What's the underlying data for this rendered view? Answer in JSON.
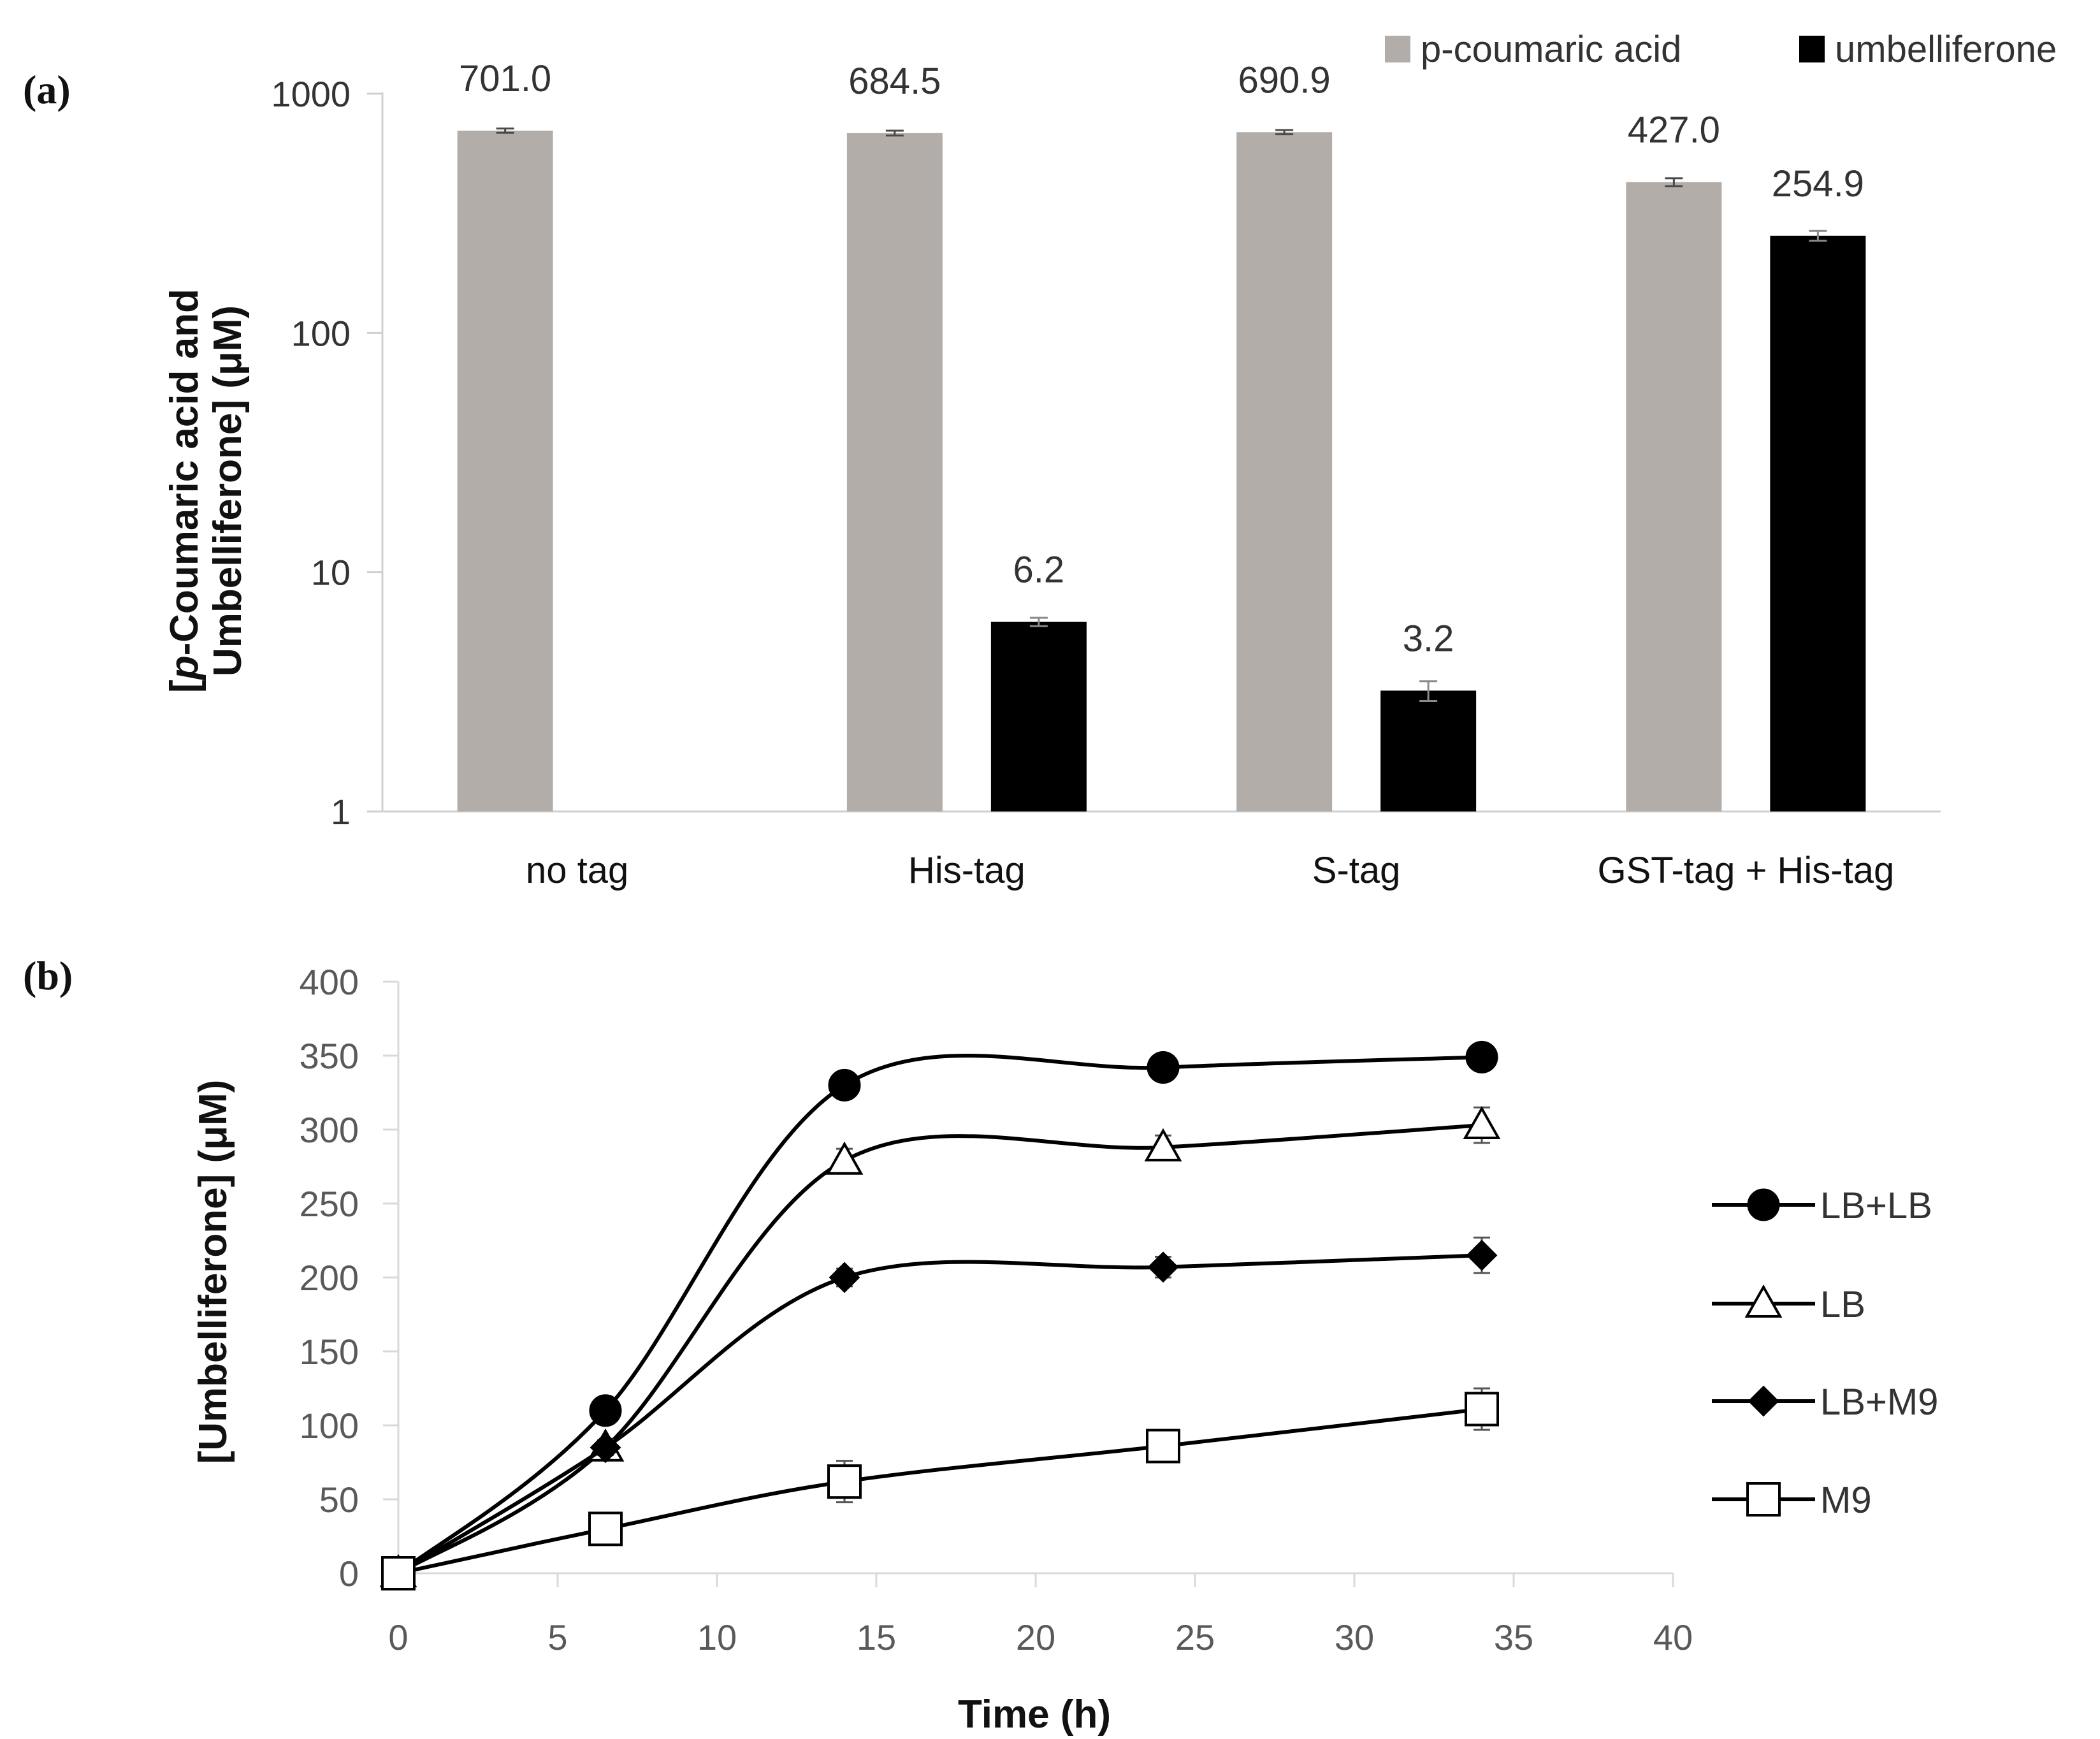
{
  "chart_data": [
    {
      "type": "bar",
      "panel_label": "(a)",
      "yscale": "log",
      "ylim": [
        1,
        1000
      ],
      "yticks": [
        "1",
        "10",
        "100",
        "1000"
      ],
      "ylabel_line1_prefix": "[",
      "ylabel_line1_italic": "p",
      "ylabel_line1_rest": "-Coumaric acid and",
      "ylabel_line2": "Umbelliferone] (μM)",
      "categories": [
        "no tag",
        "His-tag",
        "S-tag",
        "GST-tag + His-tag"
      ],
      "series": [
        {
          "name": "p-coumaric acid",
          "color": "#b3adaa",
          "values": [
            701.0,
            684.5,
            690.9,
            427.0
          ],
          "errors": [
            14,
            16,
            14,
            16
          ],
          "labels": [
            "701.0",
            "684.5",
            "690.9",
            "427.0"
          ]
        },
        {
          "name": "umbelliferone",
          "color": "#000000",
          "values": [
            null,
            6.2,
            3.2,
            254.9
          ],
          "errors": [
            null,
            0.25,
            0.3,
            12
          ],
          "labels": [
            "",
            "6.2",
            "3.2",
            "254.9"
          ]
        }
      ],
      "legend_position": "top-right"
    },
    {
      "type": "line",
      "panel_label": "(b)",
      "xlabel": "Time (h)",
      "ylabel": "[Umbelliferone] (μM)",
      "xlim": [
        0,
        40
      ],
      "ylim": [
        0,
        400
      ],
      "xticks": [
        "0",
        "5",
        "10",
        "15",
        "20",
        "25",
        "30",
        "35",
        "40"
      ],
      "yticks": [
        "0",
        "50",
        "100",
        "150",
        "200",
        "250",
        "300",
        "350",
        "400"
      ],
      "x": [
        0,
        6.5,
        14,
        24,
        34
      ],
      "series": [
        {
          "name": "LB+LB",
          "marker": "circle-filled",
          "values": [
            0,
            110,
            330,
            342,
            349
          ],
          "errors": [
            0,
            5,
            6,
            7,
            8
          ]
        },
        {
          "name": "LB",
          "marker": "triangle-open",
          "values": [
            0,
            85,
            279,
            288,
            303
          ],
          "errors": [
            0,
            5,
            8,
            8,
            12
          ]
        },
        {
          "name": "LB+M9",
          "marker": "diamond-filled",
          "values": [
            0,
            85,
            200,
            207,
            215
          ],
          "errors": [
            0,
            5,
            6,
            7,
            12
          ]
        },
        {
          "name": "M9",
          "marker": "square-open",
          "values": [
            0,
            30,
            62,
            86,
            111
          ],
          "errors": [
            0,
            4,
            14,
            8,
            14
          ]
        }
      ],
      "legend_position": "right"
    }
  ]
}
